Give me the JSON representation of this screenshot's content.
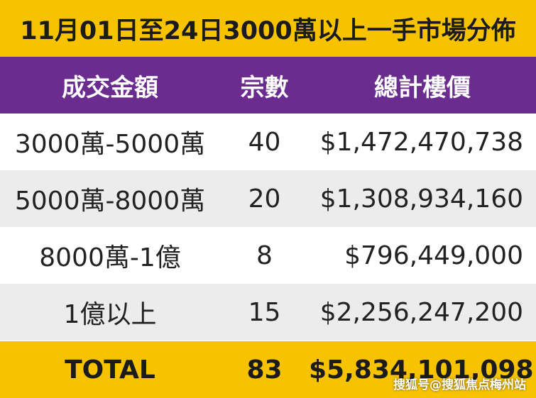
{
  "title": "11月01日至24日3000萬以上一手市場分佈",
  "headers": [
    "成交金額",
    "宗數",
    "總計樓價"
  ],
  "rows": [
    {
      "range": "3000萬-5000萬",
      "count": "40",
      "total": "$1,472,470,738"
    },
    {
      "range": "5000萬-8000萬",
      "count": "20",
      "total": "$1,308,934,160"
    },
    {
      "range": "8000萬-1億",
      "count": "8",
      "total": "$796,449,000"
    },
    {
      "range": "1億以上",
      "count": "15",
      "total": "$2,256,247,200"
    }
  ],
  "total": {
    "label": "TOTAL",
    "count": "83",
    "amount": "$5,834,101,098"
  },
  "watermark": "搜狐号@搜狐焦点梅州站",
  "colors": {
    "title_bg": "#f7c200",
    "header_bg": "#6b2c8f",
    "alt_row_bg": "#ececec",
    "total_bg": "#f7c200"
  },
  "chart_data": {
    "type": "table",
    "title": "11月01日至24日3000萬以上一手市場分佈",
    "columns": [
      "成交金額",
      "宗數",
      "總計樓價"
    ],
    "rows": [
      [
        "3000萬-5000萬",
        40,
        1472470738
      ],
      [
        "5000萬-8000萬",
        20,
        1308934160
      ],
      [
        "8000萬-1億",
        8,
        796449000
      ],
      [
        "1億以上",
        15,
        2256247200
      ]
    ],
    "total": [
      "TOTAL",
      83,
      5834101098
    ]
  }
}
